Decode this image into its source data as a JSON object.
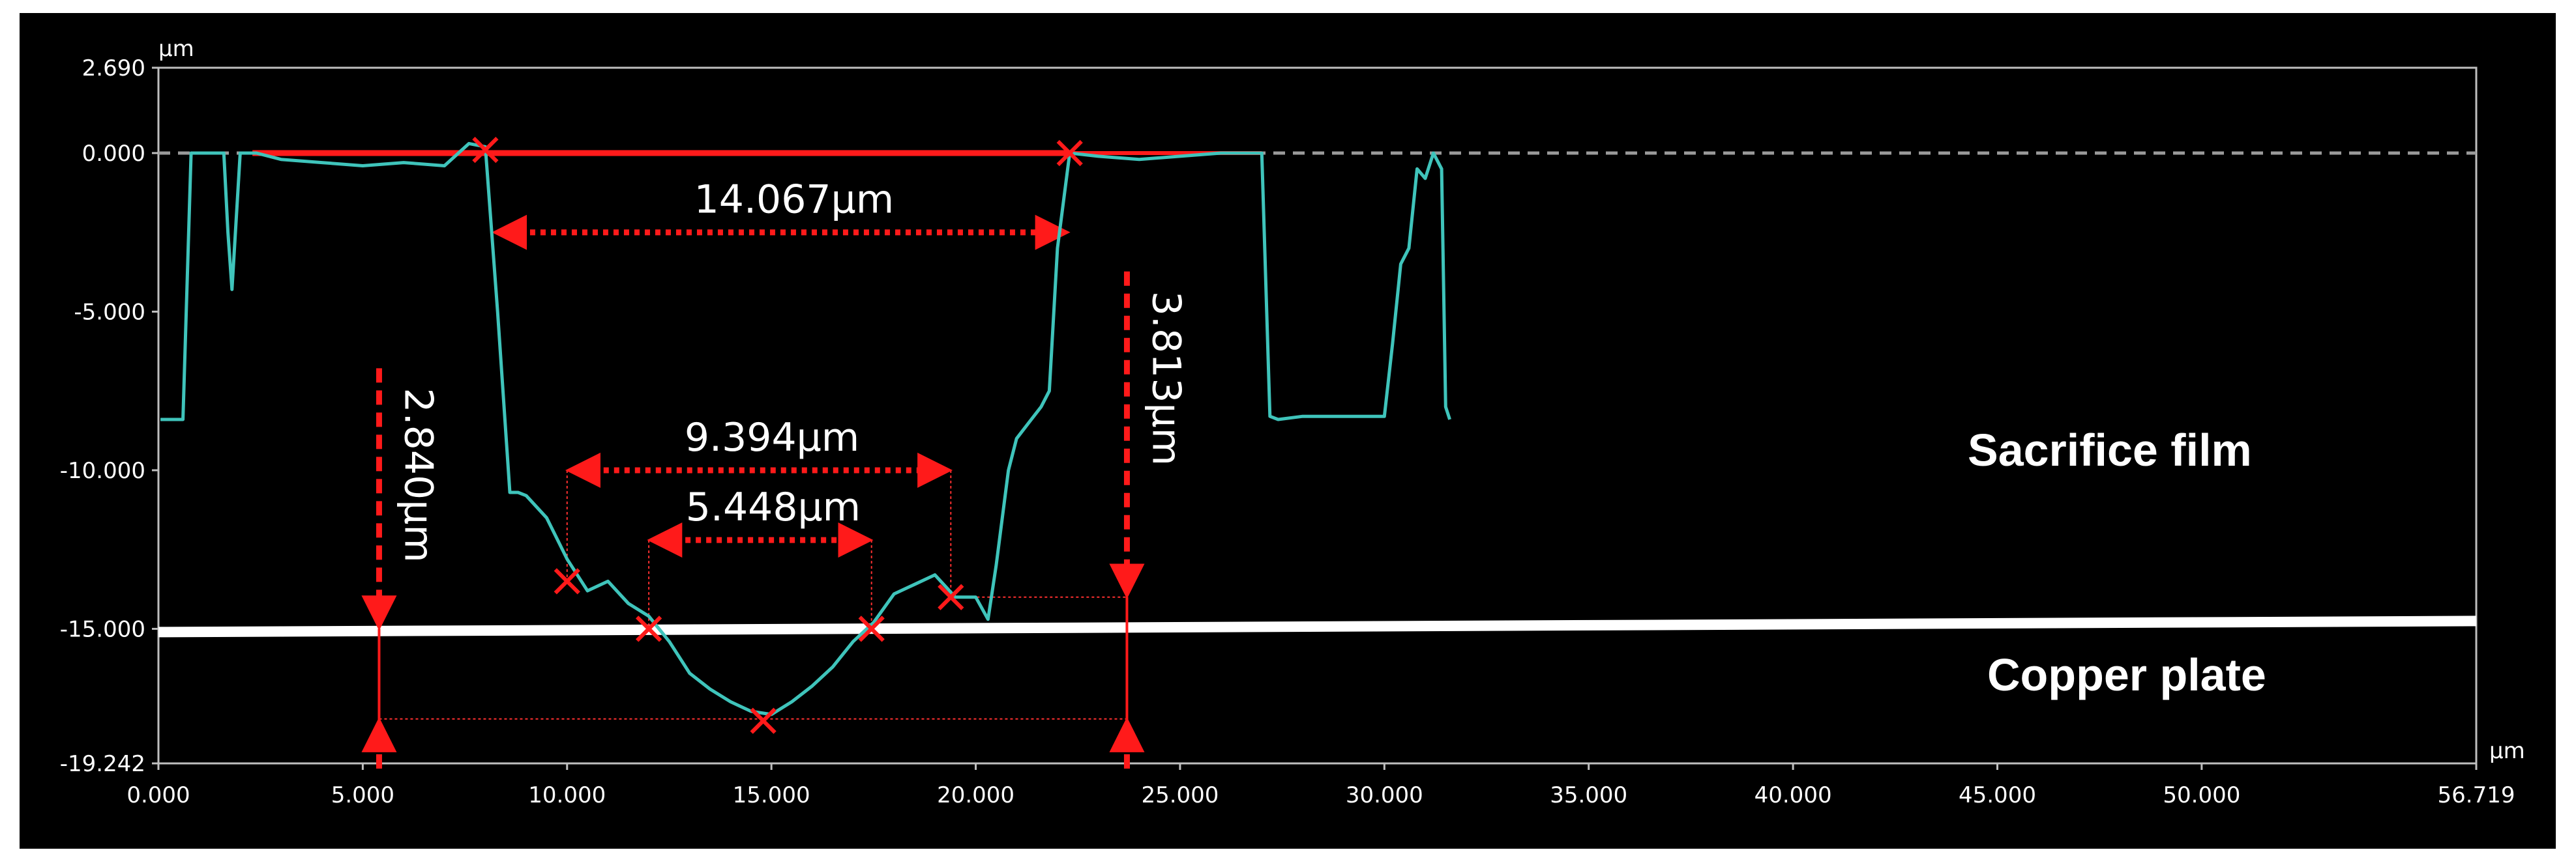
{
  "chart_data": {
    "type": "line",
    "x_unit": "µm",
    "y_unit": "µm",
    "xlim": [
      0,
      56.719
    ],
    "ylim": [
      -19.242,
      2.69
    ],
    "x_ticks": [
      "0.000",
      "5.000",
      "10.000",
      "15.000",
      "20.000",
      "25.000",
      "30.000",
      "35.000",
      "40.000",
      "45.000",
      "50.000",
      "56.719"
    ],
    "y_ticks": [
      "2.690",
      "0.000",
      "-5.000",
      "-10.000",
      "-15.000",
      "-19.242"
    ],
    "reference_line_y": 0,
    "series": [
      {
        "color": "#3fc4bb",
        "x": [
          0.05,
          0.6,
          0.8,
          1.2,
          1.6,
          1.7,
          1.8,
          2.0,
          2.4,
          3.0,
          4.0,
          5.0,
          6.0,
          7.0,
          7.6,
          8.0,
          8.3,
          8.6,
          8.8,
          9.0,
          9.5,
          10.0,
          10.5,
          11.0,
          11.5,
          12.0,
          12.5,
          13.0,
          13.5,
          14.0,
          14.5,
          15.0,
          15.5,
          16.0,
          16.5,
          17.0,
          17.5,
          18.0,
          18.5,
          19.0,
          19.5,
          20.0,
          20.3,
          20.5,
          20.8,
          21.0,
          21.3,
          21.6,
          21.8,
          22.0,
          22.3,
          23.0,
          24.0,
          25.0,
          26.0,
          27.0,
          27.2,
          27.4,
          28.0,
          29.0,
          30.0,
          30.2,
          30.4,
          30.6,
          30.8,
          31.0,
          31.2,
          31.4,
          31.5,
          31.6
        ],
        "y": [
          -8.4,
          -8.4,
          0.0,
          0.0,
          0.0,
          -2.5,
          -4.3,
          0.0,
          0.0,
          -0.2,
          -0.3,
          -0.4,
          -0.3,
          -0.4,
          0.3,
          0.2,
          -5.0,
          -10.7,
          -10.7,
          -10.8,
          -11.5,
          -12.8,
          -13.8,
          -13.5,
          -14.2,
          -14.6,
          -15.4,
          -16.4,
          -16.9,
          -17.3,
          -17.6,
          -17.7,
          -17.3,
          -16.8,
          -16.2,
          -15.4,
          -14.8,
          -13.9,
          -13.6,
          -13.3,
          -14.0,
          -14.0,
          -14.7,
          -13.0,
          -10.0,
          -9.0,
          -8.5,
          -8.0,
          -7.5,
          -3.0,
          0.0,
          -0.1,
          -0.2,
          -0.1,
          0.0,
          0.0,
          -8.3,
          -8.4,
          -8.3,
          -8.3,
          -8.3,
          -6.0,
          -3.5,
          -3.0,
          -0.5,
          -0.8,
          0.0,
          -0.5,
          -8.0,
          -8.4
        ]
      }
    ],
    "annotations": [
      {
        "label": "14.067µm",
        "x1": 8.2,
        "x2": 22.27,
        "y": -2.5
      },
      {
        "label": "9.394µm",
        "x1": 10.0,
        "x2": 19.39,
        "y": -10.0
      },
      {
        "label": "5.448µm",
        "x1": 12.0,
        "x2": 17.45,
        "y": -12.2
      },
      {
        "label": "2.840µm",
        "x": 5.4,
        "y1": -15.0,
        "y2": -17.84
      },
      {
        "label": "3.813µm",
        "x": 23.7,
        "y1": -14.0,
        "y2": -17.84
      }
    ],
    "labels": {
      "upper": "Sacrifice film",
      "lower": "Copper plate"
    }
  }
}
